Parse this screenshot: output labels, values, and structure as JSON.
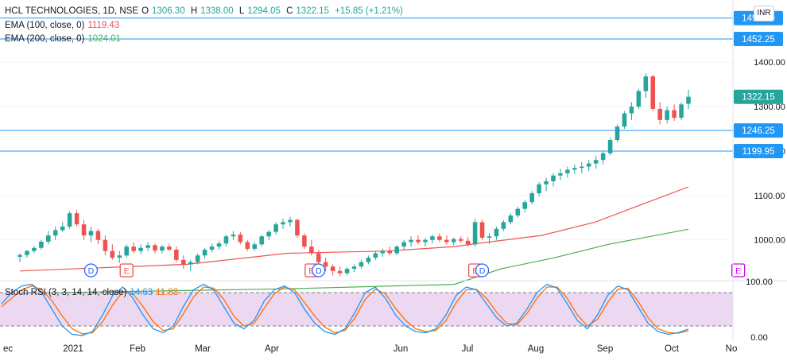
{
  "header": {
    "symbol": "HCL TECHNOLOGIES, 1D, NSE",
    "o_label": "O",
    "o_value": "1306.30",
    "h_label": "H",
    "h_value": "1338.00",
    "l_label": "L",
    "l_value": "1294.05",
    "c_label": "C",
    "c_value": "1322.15",
    "change": "+15.85 (+1.21%)",
    "currency": "INR"
  },
  "indicators": {
    "ema100_label": "EMA (100, close, 0)",
    "ema100_value": "1119.43",
    "ema200_label": "EMA (200, close, 0)",
    "ema200_value": "1024.01",
    "stoch_label": "Stoch RSI (3, 3, 14, 14, close)",
    "stoch_k": "14.63",
    "stoch_d": "11.83"
  },
  "colors": {
    "up": "#26a69a",
    "down": "#ef5350",
    "ema100": "#ef5350",
    "ema200": "#4caf50",
    "hline": "#2196f3",
    "stoch_k": "#2196f3",
    "stoch_d": "#ff6d00",
    "stoch_band": "#e1bee7",
    "last_price": "#26a69a",
    "earnings": "#ef5350",
    "dividend": "#2962ff",
    "earnings_future": "#d500f9",
    "axis_text": "#131722"
  },
  "chart_data": {
    "type": "candlestick",
    "price_axis": {
      "ticks": [
        1000,
        1100,
        1200,
        1300,
        1400
      ],
      "tick_labels": [
        "1000.00",
        "1100.00",
        "1200.00",
        "1300.00",
        "1400.00"
      ],
      "ylim": [
        910,
        1540
      ]
    },
    "time_axis": {
      "labels": [
        "ec",
        "2021",
        "Feb",
        "Mar",
        "Apr",
        "Jun",
        "Jul",
        "Aug",
        "Sep",
        "Oct",
        "No"
      ]
    },
    "horizontal_levels": [
      {
        "value": 1499.3,
        "label": "1499.30"
      },
      {
        "value": 1452.25,
        "label": "1452.25"
      },
      {
        "value": 1246.25,
        "label": "1246.25"
      },
      {
        "value": 1199.95,
        "label": "1199.95"
      }
    ],
    "last_price": {
      "value": 1322.15,
      "label": "1322.15"
    },
    "ema100": [
      [
        0.0,
        930
      ],
      [
        0.25,
        945
      ],
      [
        0.4,
        970
      ],
      [
        0.55,
        975
      ],
      [
        0.65,
        985
      ],
      [
        0.7,
        995
      ],
      [
        0.78,
        1010
      ],
      [
        0.86,
        1040
      ],
      [
        1.0,
        1119.43
      ]
    ],
    "ema200": [
      [
        0.0,
        880
      ],
      [
        0.4,
        890
      ],
      [
        0.65,
        900
      ],
      [
        0.72,
        935
      ],
      [
        0.8,
        960
      ],
      [
        0.88,
        990
      ],
      [
        1.0,
        1024.01
      ]
    ],
    "candles": [
      [
        962,
        970,
        950,
        966
      ],
      [
        966,
        978,
        960,
        975
      ],
      [
        975,
        986,
        970,
        982
      ],
      [
        982,
        1000,
        978,
        996
      ],
      [
        996,
        1020,
        990,
        1010
      ],
      [
        1010,
        1030,
        1000,
        1022
      ],
      [
        1022,
        1040,
        1018,
        1030
      ],
      [
        1030,
        1065,
        1025,
        1060
      ],
      [
        1060,
        1068,
        1030,
        1035
      ],
      [
        1035,
        1045,
        1000,
        1010
      ],
      [
        1010,
        1030,
        995,
        1020
      ],
      [
        1020,
        1025,
        990,
        1000
      ],
      [
        1000,
        1010,
        965,
        975
      ],
      [
        975,
        990,
        955,
        960
      ],
      [
        960,
        975,
        948,
        965
      ],
      [
        965,
        990,
        960,
        985
      ],
      [
        985,
        995,
        970,
        975
      ],
      [
        975,
        990,
        968,
        982
      ],
      [
        982,
        995,
        975,
        988
      ],
      [
        988,
        992,
        970,
        976
      ],
      [
        976,
        988,
        970,
        985
      ],
      [
        985,
        992,
        975,
        978
      ],
      [
        978,
        985,
        950,
        955
      ],
      [
        955,
        965,
        935,
        945
      ],
      [
        945,
        955,
        930,
        950
      ],
      [
        950,
        970,
        945,
        965
      ],
      [
        965,
        982,
        958,
        978
      ],
      [
        978,
        992,
        972,
        985
      ],
      [
        985,
        998,
        978,
        992
      ],
      [
        992,
        1012,
        985,
        1008
      ],
      [
        1008,
        1020,
        1000,
        1012
      ],
      [
        1012,
        1018,
        990,
        995
      ],
      [
        995,
        1000,
        975,
        980
      ],
      [
        980,
        995,
        975,
        990
      ],
      [
        990,
        1012,
        985,
        1008
      ],
      [
        1008,
        1022,
        1000,
        1018
      ],
      [
        1018,
        1040,
        1012,
        1035
      ],
      [
        1035,
        1048,
        1025,
        1040
      ],
      [
        1040,
        1052,
        1030,
        1045
      ],
      [
        1045,
        1048,
        1005,
        1010
      ],
      [
        1010,
        1015,
        980,
        985
      ],
      [
        985,
        1000,
        965,
        970
      ],
      [
        970,
        978,
        945,
        950
      ],
      [
        950,
        960,
        930,
        940
      ],
      [
        940,
        945,
        920,
        930
      ],
      [
        930,
        940,
        918,
        925
      ],
      [
        925,
        938,
        920,
        935
      ],
      [
        935,
        945,
        928,
        940
      ],
      [
        940,
        955,
        935,
        950
      ],
      [
        950,
        965,
        945,
        960
      ],
      [
        960,
        975,
        955,
        970
      ],
      [
        970,
        980,
        962,
        975
      ],
      [
        975,
        985,
        965,
        970
      ],
      [
        970,
        988,
        965,
        985
      ],
      [
        985,
        1000,
        978,
        995
      ],
      [
        995,
        1008,
        985,
        1000
      ],
      [
        1000,
        1010,
        990,
        995
      ],
      [
        995,
        1005,
        985,
        1000
      ],
      [
        1000,
        1012,
        992,
        1008
      ],
      [
        1008,
        1015,
        995,
        1000
      ],
      [
        1000,
        1010,
        990,
        995
      ],
      [
        995,
        1005,
        988,
        1002
      ],
      [
        1002,
        1008,
        992,
        998
      ],
      [
        998,
        1006,
        985,
        990
      ],
      [
        990,
        1048,
        985,
        1040
      ],
      [
        1040,
        1045,
        1000,
        1005
      ],
      [
        1005,
        1015,
        990,
        1008
      ],
      [
        1008,
        1030,
        1000,
        1025
      ],
      [
        1025,
        1045,
        1020,
        1040
      ],
      [
        1040,
        1060,
        1035,
        1055
      ],
      [
        1055,
        1075,
        1050,
        1070
      ],
      [
        1070,
        1090,
        1062,
        1085
      ],
      [
        1085,
        1110,
        1080,
        1105
      ],
      [
        1105,
        1130,
        1098,
        1125
      ],
      [
        1125,
        1140,
        1110,
        1132
      ],
      [
        1132,
        1150,
        1120,
        1145
      ],
      [
        1145,
        1160,
        1135,
        1150
      ],
      [
        1150,
        1165,
        1140,
        1158
      ],
      [
        1158,
        1170,
        1148,
        1162
      ],
      [
        1162,
        1175,
        1150,
        1165
      ],
      [
        1165,
        1180,
        1155,
        1172
      ],
      [
        1172,
        1190,
        1160,
        1180
      ],
      [
        1180,
        1200,
        1170,
        1195
      ],
      [
        1195,
        1230,
        1190,
        1225
      ],
      [
        1225,
        1260,
        1220,
        1255
      ],
      [
        1255,
        1290,
        1250,
        1285
      ],
      [
        1285,
        1310,
        1270,
        1300
      ],
      [
        1300,
        1340,
        1295,
        1335
      ],
      [
        1335,
        1375,
        1320,
        1368
      ],
      [
        1368,
        1372,
        1290,
        1295
      ],
      [
        1295,
        1310,
        1260,
        1270
      ],
      [
        1270,
        1300,
        1262,
        1292
      ],
      [
        1292,
        1305,
        1268,
        1275
      ],
      [
        1275,
        1310,
        1270,
        1305
      ],
      [
        1306.3,
        1338.0,
        1294.05,
        1322.15
      ]
    ],
    "events": [
      {
        "type": "dividend",
        "label": "D",
        "index": 10
      },
      {
        "type": "earnings",
        "label": "E",
        "index": 15
      },
      {
        "type": "earnings",
        "label": "E",
        "index": 41
      },
      {
        "type": "dividend",
        "label": "D",
        "index": 42
      },
      {
        "type": "earnings",
        "label": "E",
        "index": 64
      },
      {
        "type": "dividend",
        "label": "D",
        "index": 65
      },
      {
        "type": "earnings_future",
        "label": "E",
        "index": 101
      }
    ],
    "stoch_axis": {
      "tick_labels": [
        "100.00",
        "0.00"
      ],
      "ylim": [
        0,
        100
      ],
      "bands": [
        80,
        20
      ]
    },
    "stoch_k": [
      60,
      80,
      92,
      95,
      80,
      50,
      20,
      5,
      3,
      10,
      40,
      75,
      90,
      70,
      40,
      15,
      8,
      20,
      55,
      85,
      95,
      85,
      55,
      25,
      15,
      30,
      65,
      85,
      92,
      80,
      50,
      25,
      10,
      5,
      15,
      45,
      80,
      90,
      70,
      40,
      20,
      10,
      8,
      15,
      40,
      75,
      90,
      85,
      60,
      35,
      20,
      25,
      50,
      80,
      95,
      88,
      60,
      30,
      15,
      40,
      75,
      92,
      85,
      55,
      25,
      10,
      5,
      8,
      14.63
    ],
    "stoch_d": [
      55,
      70,
      85,
      92,
      85,
      65,
      38,
      15,
      6,
      8,
      28,
      58,
      82,
      78,
      55,
      28,
      12,
      15,
      42,
      72,
      90,
      88,
      68,
      38,
      20,
      25,
      52,
      78,
      90,
      85,
      62,
      38,
      18,
      8,
      12,
      35,
      68,
      86,
      78,
      52,
      30,
      15,
      10,
      12,
      30,
      62,
      85,
      86,
      70,
      45,
      25,
      22,
      42,
      70,
      90,
      90,
      70,
      40,
      20,
      32,
      62,
      86,
      88,
      65,
      35,
      15,
      8,
      7,
      11.83
    ]
  }
}
